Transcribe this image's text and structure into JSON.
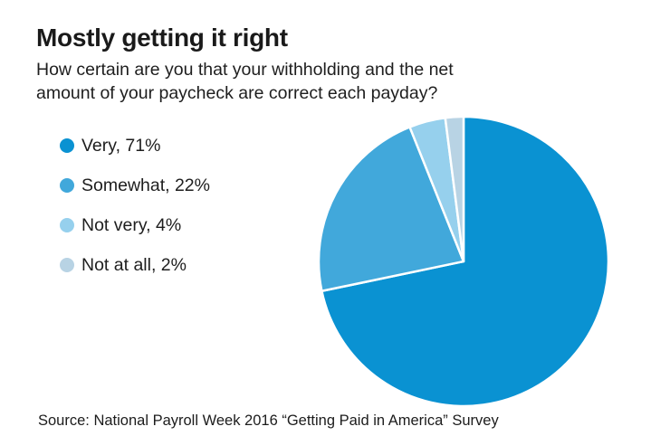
{
  "header": {
    "title": "Mostly getting it right",
    "subtitle": "How certain are you that your withholding and the net amount of your paycheck are correct each payday?",
    "subtitle_line1": "How certain are you that your withholding and the net",
    "subtitle_line2": "amount of your paycheck are correct each payday?"
  },
  "footer": {
    "source": "Source: National Payroll Week 2016 “Getting Paid in America” Survey"
  },
  "chart_data": {
    "type": "pie",
    "title": "Mostly getting it right",
    "subtitle": "How certain are you that your withholding and the net amount of your paycheck are correct each payday?",
    "categories": [
      "Very",
      "Somewhat",
      "Not very",
      "Not at all"
    ],
    "values": [
      71,
      22,
      4,
      2
    ],
    "unit": "%",
    "colors": [
      "#0a92d2",
      "#41a8db",
      "#96d0ed",
      "#b8d3e4"
    ],
    "legend_labels": [
      "Very, 71%",
      "Somewhat, 22%",
      "Not very, 4%",
      "Not at all, 2%"
    ],
    "legend_position": "left",
    "start_angle_deg": -90,
    "direction": "clockwise",
    "slice_border_color": "#ffffff",
    "slice_border_width": 2.5,
    "source": "Source: National Payroll Week 2016 “Getting Paid in America” Survey"
  }
}
